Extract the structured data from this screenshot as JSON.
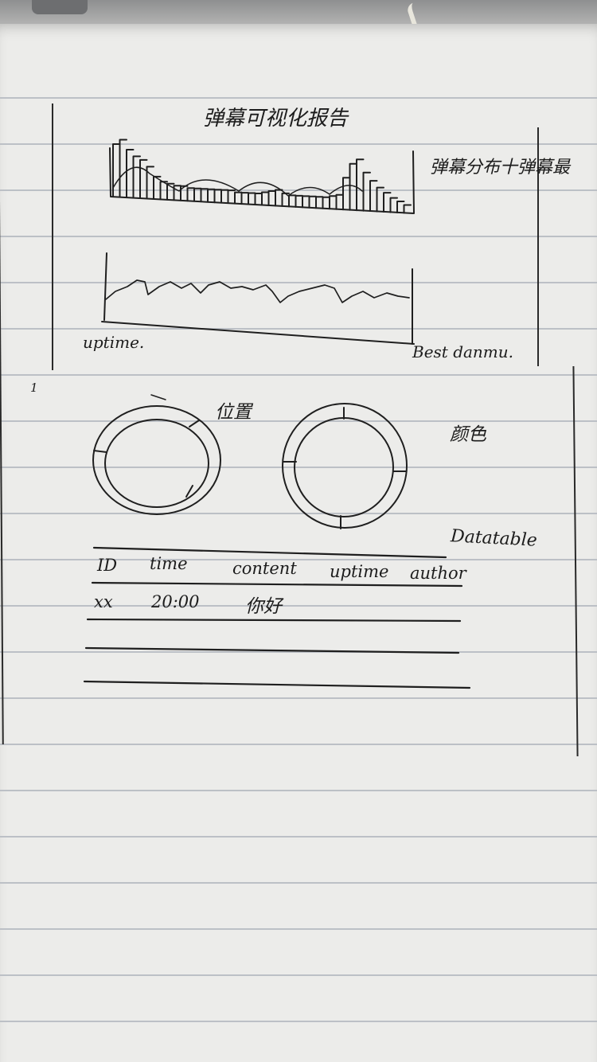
{
  "title": "弹幕可视化报告",
  "labels": {
    "distribution": "弹幕分布十弹幕最",
    "uptime": "uptime.",
    "best_danmu": "Best danmu.",
    "position": "位置",
    "color": "颜色",
    "datatable": "Datatable",
    "page_num": "1"
  },
  "table": {
    "columns": [
      "ID",
      "time",
      "content",
      "uptime",
      "author"
    ],
    "rows": [
      [
        "xx",
        "20:00",
        "你好",
        "",
        ""
      ]
    ]
  }
}
